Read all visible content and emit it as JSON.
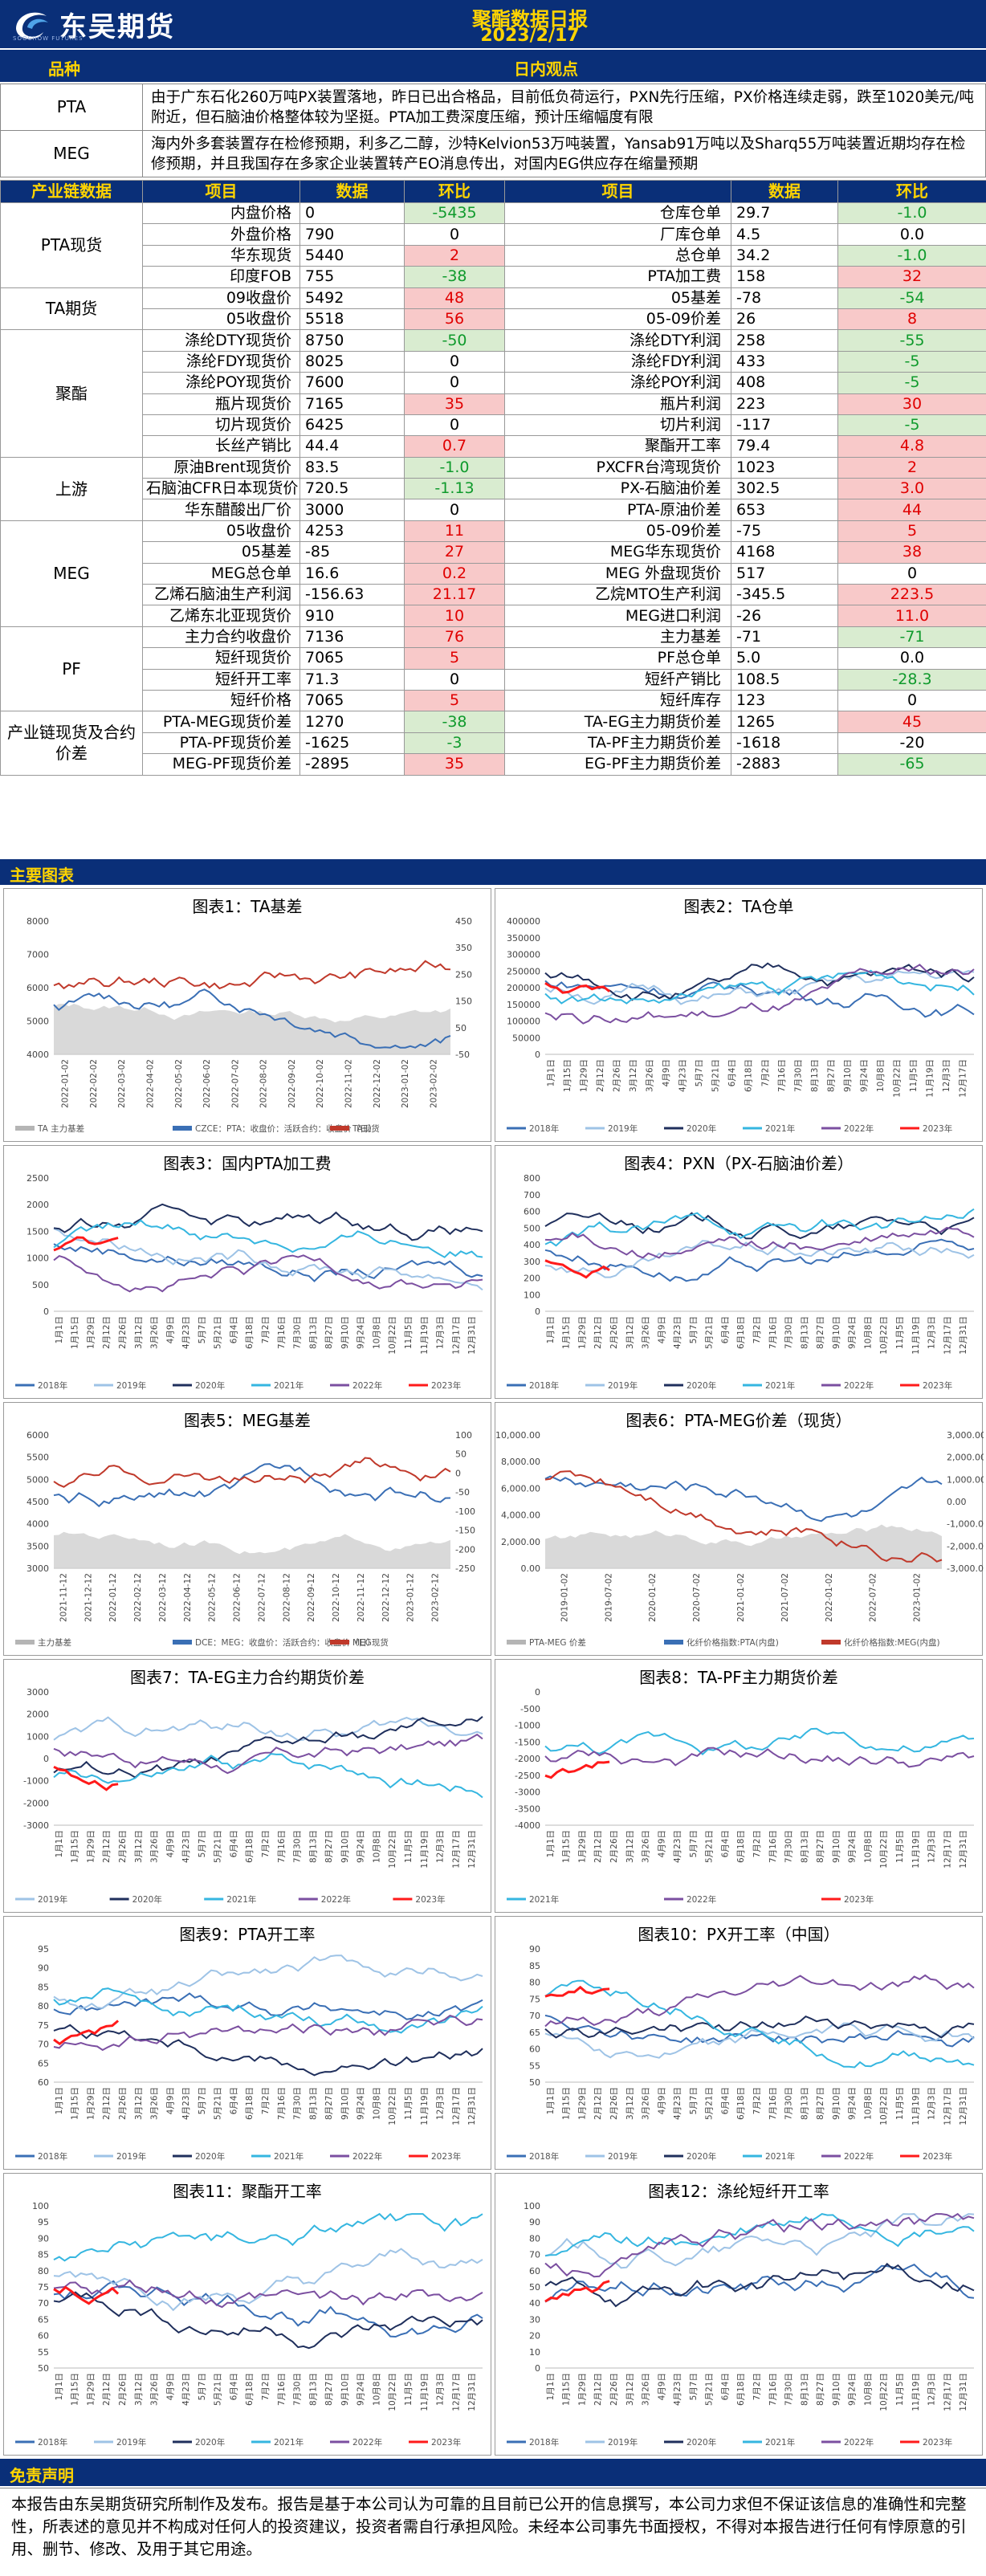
{
  "header": {
    "logo_text": "东吴期货",
    "logo_sub": "SOOCHOW FUTURES",
    "title": "聚酯数据日报",
    "date": "2023/2/17"
  },
  "views": {
    "col_variety": "品种",
    "col_view": "日内观点",
    "rows": [
      {
        "name": "PTA",
        "text": "由于广东石化260万吨PX装置落地，昨日已出合格品，目前低负荷运行，PXN先行压缩，PX价格连续走弱，跌至1020美元/吨附近，但石脑油价格整体较为坚挺。PTA加工费深度压缩，预计压缩幅度有限"
      },
      {
        "name": "MEG",
        "text": "海内外多套装置存在检修预期，利多乙二醇，沙特Kelvion53万吨装置，Yansab91万吨以及Sharq55万吨装置近期均存在检修预期，并且我国存在多家企业装置转产EO消息传出，对国内EG供应存在缩量预期"
      }
    ]
  },
  "table": {
    "headers": [
      "产业链数据",
      "项目",
      "数据",
      "环比",
      "项目",
      "数据",
      "环比"
    ],
    "groups": [
      {
        "name": "PTA现货",
        "rows": [
          {
            "i1": "内盘价格",
            "v1": "0",
            "c1": "-5435",
            "t1": "dn",
            "i2": "仓库仓单",
            "v2": "29.7",
            "c2": "-1.0",
            "t2": "dn"
          },
          {
            "i1": "外盘价格",
            "v1": "790",
            "c1": "0",
            "t1": "",
            "i2": "厂库仓单",
            "v2": "4.5",
            "c2": "0.0",
            "t2": ""
          },
          {
            "i1": "华东现货",
            "v1": "5440",
            "c1": "2",
            "t1": "up",
            "i2": "总仓单",
            "v2": "34.2",
            "c2": "-1.0",
            "t2": "dn"
          },
          {
            "i1": "印度FOB",
            "v1": "755",
            "c1": "-38",
            "t1": "dn",
            "i2": "PTA加工费",
            "v2": "158",
            "c2": "32",
            "t2": "up"
          }
        ]
      },
      {
        "name": "TA期货",
        "rows": [
          {
            "i1": "09收盘价",
            "v1": "5492",
            "c1": "48",
            "t1": "up",
            "i2": "05基差",
            "v2": "-78",
            "c2": "-54",
            "t2": "dn"
          },
          {
            "i1": "05收盘价",
            "v1": "5518",
            "c1": "56",
            "t1": "up",
            "i2": "05-09价差",
            "v2": "26",
            "c2": "8",
            "t2": "up"
          }
        ]
      },
      {
        "name": "聚酯",
        "rows": [
          {
            "i1": "涤纶DTY现货价",
            "v1": "8750",
            "c1": "-50",
            "t1": "dn",
            "i2": "涤纶DTY利润",
            "v2": "258",
            "c2": "-55",
            "t2": "dn"
          },
          {
            "i1": "涤纶FDY现货价",
            "v1": "8025",
            "c1": "0",
            "t1": "",
            "i2": "涤纶FDY利润",
            "v2": "433",
            "c2": "-5",
            "t2": "dn"
          },
          {
            "i1": "涤纶POY现货价",
            "v1": "7600",
            "c1": "0",
            "t1": "",
            "i2": "涤纶POY利润",
            "v2": "408",
            "c2": "-5",
            "t2": "dn"
          },
          {
            "i1": "瓶片现货价",
            "v1": "7165",
            "c1": "35",
            "t1": "up",
            "i2": "瓶片利润",
            "v2": "223",
            "c2": "30",
            "t2": "up"
          },
          {
            "i1": "切片现货价",
            "v1": "6425",
            "c1": "0",
            "t1": "",
            "i2": "切片利润",
            "v2": "-117",
            "c2": "-5",
            "t2": "dn"
          },
          {
            "i1": "长丝产销比",
            "v1": "44.4",
            "c1": "0.7",
            "t1": "up",
            "i2": "聚酯开工率",
            "v2": "79.4",
            "c2": "4.8",
            "t2": "up"
          }
        ]
      },
      {
        "name": "上游",
        "rows": [
          {
            "i1": "原油Brent现货价",
            "v1": "83.5",
            "c1": "-1.0",
            "t1": "dn",
            "i2": "PXCFR台湾现货价",
            "v2": "1023",
            "c2": "2",
            "t2": "up"
          },
          {
            "i1": "石脑油CFR日本现货价",
            "v1": "720.5",
            "c1": "-1.13",
            "t1": "dn",
            "i2": "PX-石脑油价差",
            "v2": "302.5",
            "c2": "3.0",
            "t2": "up"
          },
          {
            "i1": "华东醋酸出厂价",
            "v1": "3000",
            "c1": "0",
            "t1": "",
            "i2": "PTA-原油价差",
            "v2": "653",
            "c2": "44",
            "t2": "up"
          }
        ]
      },
      {
        "name": "MEG",
        "rows": [
          {
            "i1": "05收盘价",
            "v1": "4253",
            "c1": "11",
            "t1": "up",
            "i2": "05-09价差",
            "v2": "-75",
            "c2": "5",
            "t2": "up"
          },
          {
            "i1": "05基差",
            "v1": "-85",
            "c1": "27",
            "t1": "up",
            "i2": "MEG华东现货价",
            "v2": "4168",
            "c2": "38",
            "t2": "up"
          },
          {
            "i1": "MEG总仓单",
            "v1": "16.6",
            "c1": "0.2",
            "t1": "up",
            "i2": "MEG 外盘现货价",
            "v2": "517",
            "c2": "0",
            "t2": ""
          },
          {
            "i1": "乙烯石脑油生产利润",
            "v1": "-156.63",
            "c1": "21.17",
            "t1": "up",
            "i2": "乙烷MTO生产利润",
            "v2": "-345.5",
            "c2": "223.5",
            "t2": "up"
          },
          {
            "i1": "乙烯东北亚现货价",
            "v1": "910",
            "c1": "10",
            "t1": "up",
            "i2": "MEG进口利润",
            "v2": "-26",
            "c2": "11.0",
            "t2": "up"
          }
        ]
      },
      {
        "name": "PF",
        "rows": [
          {
            "i1": "主力合约收盘价",
            "v1": "7136",
            "c1": "76",
            "t1": "up",
            "i2": "主力基差",
            "v2": "-71",
            "c2": "-71",
            "t2": "dn"
          },
          {
            "i1": "短纤现货价",
            "v1": "7065",
            "c1": "5",
            "t1": "up",
            "i2": "PF总仓单",
            "v2": "5.0",
            "c2": "0.0",
            "t2": ""
          },
          {
            "i1": "短纤开工率",
            "v1": "71.3",
            "c1": "0",
            "t1": "",
            "i2": "短纤产销比",
            "v2": "108.5",
            "c2": "-28.3",
            "t2": "dn"
          },
          {
            "i1": "短纤价格",
            "v1": "7065",
            "c1": "5",
            "t1": "up",
            "i2": "短纤库存",
            "v2": "123",
            "c2": "0",
            "t2": ""
          }
        ]
      },
      {
        "name": "产业链现货及合约价差",
        "rows": [
          {
            "i1": "PTA-MEG现货价差",
            "v1": "1270",
            "c1": "-38",
            "t1": "dn",
            "i2": "TA-EG主力期货价差",
            "v2": "1265",
            "c2": "45",
            "t2": "up"
          },
          {
            "i1": "PTA-PF现货价差",
            "v1": "-1625",
            "c1": "-3",
            "t1": "dn",
            "i2": "TA-PF主力期货价差",
            "v2": "-1618",
            "c2": "-20",
            "t2": ""
          },
          {
            "i1": "MEG-PF现货价差",
            "v1": "-2895",
            "c1": "35",
            "t1": "up",
            "i2": "EG-PF主力期货价差",
            "v2": "-2883",
            "c2": "-65",
            "t2": "dn"
          }
        ]
      }
    ]
  },
  "section_charts": "主要图表",
  "colors": {
    "navy": "#0a2f78",
    "gold": "#ffd400",
    "y2018": "#3a6fb5",
    "y2019": "#9ec3e6",
    "y2020": "#1f2f5c",
    "y2021": "#35b6e0",
    "y2022": "#7b4fa0",
    "y2023": "#ff1a1a"
  },
  "charts": [
    {
      "title": "图表1：TA基差",
      "left": [
        "8000",
        "7000",
        "6000",
        "5000",
        "4000"
      ],
      "right": [
        "450",
        "350",
        "250",
        "150",
        "50",
        "-50"
      ],
      "xlabels": [
        "2022-01-02",
        "2022-02-02",
        "2022-03-02",
        "2022-04-02",
        "2022-05-02",
        "2022-06-02",
        "2022-07-02",
        "2022-08-02",
        "2022-09-02",
        "2022-10-02",
        "2022-11-02",
        "2022-12-02",
        "2023-01-02",
        "2023-02-02"
      ],
      "legend": [
        "TA 主力基差",
        "CZCE：PTA：收盘价：活跃合约：收盘价（日）",
        "TA现货"
      ]
    },
    {
      "title": "图表2：TA仓单",
      "left": [
        "400000",
        "350000",
        "300000",
        "250000",
        "200000",
        "150000",
        "100000",
        "50000",
        "0"
      ],
      "right": [],
      "xlabels": [
        "1月1日",
        "1月15日",
        "1月29日",
        "2月12日",
        "2月26日",
        "3月12日",
        "3月26日",
        "4月9日",
        "4月23日",
        "5月7日",
        "5月21日",
        "6月4日",
        "6月18日",
        "7月2日",
        "7月16日",
        "7月30日",
        "8月13日",
        "8月27日",
        "9月10日",
        "9月24日",
        "10月8日",
        "10月22日",
        "11月5日",
        "11月19日",
        "12月3日",
        "12月17日"
      ],
      "legend": [
        "2018年",
        "2019年",
        "2020年",
        "2021年",
        "2022年",
        "2023年"
      ]
    },
    {
      "title": "图表3：国内PTA加工费",
      "left": [
        "2500",
        "2000",
        "1500",
        "1000",
        "500",
        "0"
      ],
      "right": [],
      "xlabels": [
        "1月1日",
        "1月15日",
        "1月29日",
        "2月12日",
        "2月26日",
        "3月12日",
        "3月26日",
        "4月9日",
        "4月23日",
        "5月7日",
        "5月21日",
        "6月4日",
        "6月18日",
        "7月2日",
        "7月16日",
        "7月30日",
        "8月13日",
        "8月27日",
        "9月10日",
        "9月24日",
        "10月8日",
        "10月22日",
        "11月5日",
        "11月19日",
        "12月3日",
        "12月17日",
        "12月31日"
      ],
      "legend": [
        "2018年",
        "2019年",
        "2020年",
        "2021年",
        "2022年",
        "2023年"
      ]
    },
    {
      "title": "图表4：PXN（PX-石脑油价差）",
      "left": [
        "800",
        "700",
        "600",
        "500",
        "400",
        "300",
        "200",
        "100",
        "0"
      ],
      "right": [],
      "xlabels": [
        "1月1日",
        "1月15日",
        "1月29日",
        "2月12日",
        "2月26日",
        "3月12日",
        "3月26日",
        "4月9日",
        "4月23日",
        "5月7日",
        "5月21日",
        "6月4日",
        "6月18日",
        "7月2日",
        "7月16日",
        "7月30日",
        "8月13日",
        "8月27日",
        "9月10日",
        "9月24日",
        "10月8日",
        "10月22日",
        "11月5日",
        "11月19日",
        "12月3日",
        "12月17日",
        "12月31日"
      ],
      "legend": [
        "2018年",
        "2019年",
        "2020年",
        "2021年",
        "2022年",
        "2023年"
      ]
    },
    {
      "title": "图表5：MEG基差",
      "left": [
        "6000",
        "5500",
        "5000",
        "4500",
        "4000",
        "3500",
        "3000"
      ],
      "right": [
        "100",
        "50",
        "0",
        "-50",
        "-100",
        "-150",
        "-200",
        "-250"
      ],
      "xlabels": [
        "2021-11-12",
        "2021-12-12",
        "2022-01-12",
        "2022-02-12",
        "2022-03-12",
        "2022-04-12",
        "2022-05-12",
        "2022-06-12",
        "2022-07-12",
        "2022-08-12",
        "2022-09-12",
        "2022-10-12",
        "2022-11-12",
        "2022-12-12",
        "2023-01-12",
        "2023-02-12"
      ],
      "legend": [
        "主力基差",
        "DCE：MEG：收盘价：活跃合约：收盘价（日）",
        "MEG现货"
      ]
    },
    {
      "title": "图表6：PTA-MEG价差（现货）",
      "left": [
        "10,000.00",
        "8,000.00",
        "6,000.00",
        "4,000.00",
        "2,000.00",
        "0.00"
      ],
      "right": [
        "3,000.00",
        "2,000.00",
        "1,000.00",
        "0.00",
        "-1,000.00",
        "-2,000.00",
        "-3,000.00"
      ],
      "xlabels": [
        "2019-01-02",
        "2019-07-02",
        "2020-01-02",
        "2020-07-02",
        "2021-01-02",
        "2021-07-02",
        "2022-01-02",
        "2022-07-02",
        "2023-01-02"
      ],
      "legend": [
        "PTA-MEG 价差",
        "化纤价格指数:PTA(内盘)",
        "化纤价格指数:MEG(内盘)"
      ]
    },
    {
      "title": "图表7：TA-EG主力合约期货价差",
      "left": [
        "3000",
        "2000",
        "1000",
        "0",
        "-1000",
        "-2000",
        "-3000"
      ],
      "right": [],
      "xlabels": [
        "1月1日",
        "1月15日",
        "1月29日",
        "2月12日",
        "2月26日",
        "3月12日",
        "3月26日",
        "4月9日",
        "4月23日",
        "5月7日",
        "5月21日",
        "6月4日",
        "6月18日",
        "7月2日",
        "7月16日",
        "7月30日",
        "8月13日",
        "8月27日",
        "9月10日",
        "9月24日",
        "10月8日",
        "10月22日",
        "11月5日",
        "11月19日",
        "12月3日",
        "12月17日",
        "12月31日"
      ],
      "legend": [
        "2019年",
        "2020年",
        "2021年",
        "2022年",
        "2023年"
      ]
    },
    {
      "title": "图表8：TA-PF主力期货价差",
      "left": [
        "0",
        "-500",
        "-1000",
        "-1500",
        "-2000",
        "-2500",
        "-3000",
        "-3500",
        "-4000"
      ],
      "right": [],
      "xlabels": [
        "1月1日",
        "1月15日",
        "1月29日",
        "2月12日",
        "2月26日",
        "3月12日",
        "3月26日",
        "4月9日",
        "4月23日",
        "5月7日",
        "5月21日",
        "6月4日",
        "6月18日",
        "7月2日",
        "7月16日",
        "7月30日",
        "8月13日",
        "8月27日",
        "9月10日",
        "9月24日",
        "10月8日",
        "10月22日",
        "11月5日",
        "11月19日",
        "12月3日",
        "12月17日",
        "12月31日"
      ],
      "legend": [
        "2021年",
        "2022年",
        "2023年"
      ]
    },
    {
      "title": "图表9：PTA开工率",
      "left": [
        "95",
        "90",
        "85",
        "80",
        "75",
        "70",
        "65",
        "60"
      ],
      "right": [],
      "xlabels": [
        "1月1日",
        "1月15日",
        "1月29日",
        "2月12日",
        "2月26日",
        "3月12日",
        "3月26日",
        "4月9日",
        "4月23日",
        "5月7日",
        "5月21日",
        "6月4日",
        "6月18日",
        "7月2日",
        "7月16日",
        "7月30日",
        "8月13日",
        "8月27日",
        "9月10日",
        "9月24日",
        "10月8日",
        "10月22日",
        "11月5日",
        "11月19日",
        "12月3日",
        "12月17日",
        "12月31日"
      ],
      "legend": [
        "2018年",
        "2019年",
        "2020年",
        "2021年",
        "2022年",
        "2023年"
      ]
    },
    {
      "title": "图表10：PX开工率（中国）",
      "left": [
        "90",
        "85",
        "80",
        "75",
        "70",
        "65",
        "60",
        "55",
        "50"
      ],
      "right": [],
      "xlabels": [
        "1月1日",
        "1月15日",
        "1月29日",
        "2月12日",
        "2月26日",
        "3月12日",
        "3月26日",
        "4月9日",
        "4月23日",
        "5月7日",
        "5月21日",
        "6月4日",
        "6月18日",
        "7月2日",
        "7月16日",
        "7月30日",
        "8月13日",
        "8月27日",
        "9月10日",
        "9月24日",
        "10月8日",
        "10月22日",
        "11月5日",
        "11月19日",
        "12月3日",
        "12月17日",
        "12月31日"
      ],
      "legend": [
        "2018年",
        "2019年",
        "2020年",
        "2021年",
        "2022年",
        "2023年"
      ]
    },
    {
      "title": "图表11：聚酯开工率",
      "left": [
        "100",
        "95",
        "90",
        "85",
        "80",
        "75",
        "70",
        "65",
        "60",
        "55",
        "50"
      ],
      "right": [],
      "xlabels": [
        "1月1日",
        "1月15日",
        "1月29日",
        "2月12日",
        "2月26日",
        "3月12日",
        "3月26日",
        "4月9日",
        "4月23日",
        "5月7日",
        "5月21日",
        "6月4日",
        "6月18日",
        "7月2日",
        "7月16日",
        "7月30日",
        "8月13日",
        "8月27日",
        "9月10日",
        "9月24日",
        "10月8日",
        "10月22日",
        "11月5日",
        "11月19日",
        "12月3日",
        "12月17日",
        "12月31日"
      ],
      "legend": [
        "2018年",
        "2019年",
        "2020年",
        "2021年",
        "2022年",
        "2023年"
      ]
    },
    {
      "title": "图表12：涤纶短纤开工率",
      "left": [
        "100",
        "90",
        "80",
        "70",
        "60",
        "50",
        "40",
        "30",
        "20",
        "10",
        "0"
      ],
      "right": [],
      "xlabels": [
        "1月1日",
        "1月15日",
        "1月29日",
        "2月12日",
        "2月26日",
        "3月12日",
        "3月26日",
        "4月9日",
        "4月23日",
        "5月7日",
        "5月21日",
        "6月4日",
        "6月18日",
        "7月2日",
        "7月16日",
        "7月30日",
        "8月13日",
        "8月27日",
        "9月10日",
        "9月24日",
        "10月8日",
        "10月22日",
        "11月5日",
        "11月19日",
        "12月3日",
        "12月17日",
        "12月31日"
      ],
      "legend": [
        "2018年",
        "2019年",
        "2020年",
        "2021年",
        "2022年",
        "2023年"
      ]
    }
  ],
  "disclaimer": {
    "title": "免责声明",
    "text": "本报告由东吴期货研究所制作及发布。报告是基于本公司认为可靠的且目前已公开的信息撰写，本公司力求但不保证该信息的准确性和完整性，所表述的意见并不构成对任何人的投资建议，投资者需自行承担风险。未经本公司事先书面授权，不得对本报告进行任何有悖原意的引用、删节、修改、及用于其它用途。"
  }
}
